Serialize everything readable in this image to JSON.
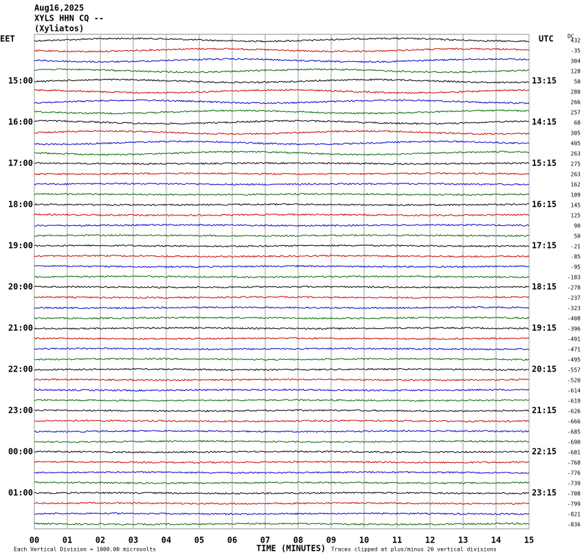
{
  "header": {
    "lines": [
      "Aug16,2025",
      "XYLS HHN CQ --",
      "(Xyliatos)"
    ]
  },
  "left": {
    "heading": "EET",
    "labels": [
      "15:00",
      "16:00",
      "17:00",
      "18:00",
      "19:00",
      "20:00",
      "21:00",
      "22:00",
      "23:00",
      "00:00",
      "01:00"
    ]
  },
  "right": {
    "heading": "UTC",
    "labels": [
      "13:15",
      "14:15",
      "15:15",
      "16:15",
      "17:15",
      "18:15",
      "19:15",
      "20:15",
      "21:15",
      "22:15",
      "23:15"
    ]
  },
  "dc": {
    "heading": "DC",
    "values": [
      432,
      -35,
      304,
      128,
      50,
      280,
      266,
      257,
      68,
      305,
      405,
      263,
      275,
      263,
      162,
      109,
      145,
      125,
      90,
      50,
      -21,
      -85,
      -95,
      -183,
      -278,
      -237,
      -323,
      -408,
      -396,
      -491,
      -471,
      -495,
      -557,
      -520,
      -614,
      -619,
      -626,
      -666,
      -685,
      -690,
      -681,
      -768,
      -776,
      -739,
      -708,
      -799,
      -821,
      -836
    ]
  },
  "x_axis": {
    "labels": [
      "00",
      "01",
      "02",
      "03",
      "04",
      "05",
      "06",
      "07",
      "08",
      "09",
      "10",
      "11",
      "12",
      "13",
      "14",
      "15"
    ],
    "title": "TIME (MINUTES)"
  },
  "footer": {
    "left": "Each Vertical Division = 1000.00 microvolts",
    "right": "Traces clipped at plus/minus 20 vertical divisions"
  }
}
